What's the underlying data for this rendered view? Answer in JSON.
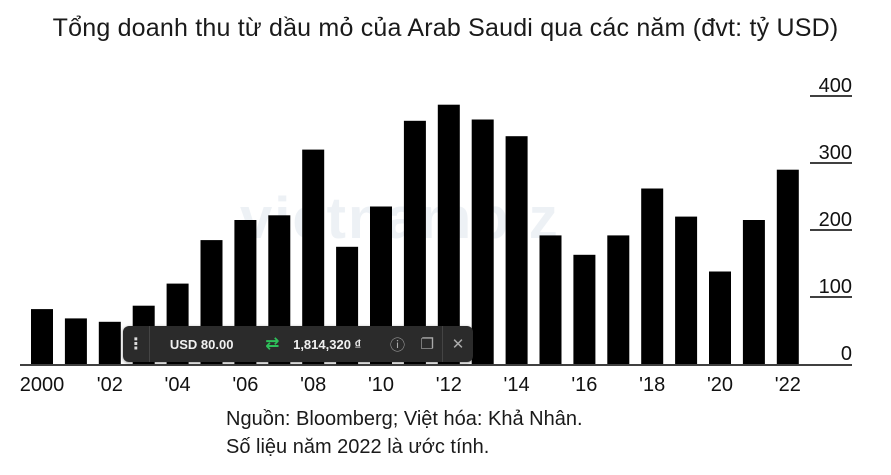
{
  "title": "Tổng doanh thu từ dầu mỏ của Arab Saudi qua các năm (đvt: tỷ USD)",
  "notes": {
    "source": "Nguồn: Bloomberg; Việt hóa: Khả Nhân.",
    "estimate": "Số liệu năm 2022 là ước tính."
  },
  "watermark": "vietnambiz",
  "toolbar": {
    "menu_icon": "⋮",
    "amount": "USD 80.00",
    "swap_icon": "⇄",
    "result": "1,814,320 ₫",
    "info_icon": "ⓘ",
    "copy_icon": "❐",
    "close_icon": "✕"
  },
  "chart_data": {
    "type": "bar",
    "title": "Tổng doanh thu từ dầu mỏ của Arab Saudi qua các năm (đvt: tỷ USD)",
    "x": [
      2000,
      2001,
      2002,
      2003,
      2004,
      2005,
      2006,
      2007,
      2008,
      2009,
      2010,
      2011,
      2012,
      2013,
      2014,
      2015,
      2016,
      2017,
      2018,
      2019,
      2020,
      2021,
      2022
    ],
    "values": [
      82,
      68,
      63,
      87,
      120,
      185,
      215,
      222,
      320,
      175,
      235,
      363,
      387,
      365,
      340,
      192,
      163,
      192,
      262,
      220,
      138,
      215,
      290
    ],
    "x_tick_labels": [
      {
        "year": 2000,
        "label": "2000"
      },
      {
        "year": 2002,
        "label": "'02"
      },
      {
        "year": 2004,
        "label": "'04"
      },
      {
        "year": 2006,
        "label": "'06"
      },
      {
        "year": 2008,
        "label": "'08"
      },
      {
        "year": 2010,
        "label": "'10"
      },
      {
        "year": 2012,
        "label": "'12"
      },
      {
        "year": 2014,
        "label": "'14"
      },
      {
        "year": 2016,
        "label": "'16"
      },
      {
        "year": 2018,
        "label": "'18"
      },
      {
        "year": 2020,
        "label": "'20"
      },
      {
        "year": 2022,
        "label": "'22"
      }
    ],
    "y_ticks": [
      0,
      100,
      200,
      300,
      400
    ],
    "ylim": [
      0,
      400
    ],
    "bar_color": "#000000",
    "grid": false,
    "y_axis_side": "right"
  }
}
